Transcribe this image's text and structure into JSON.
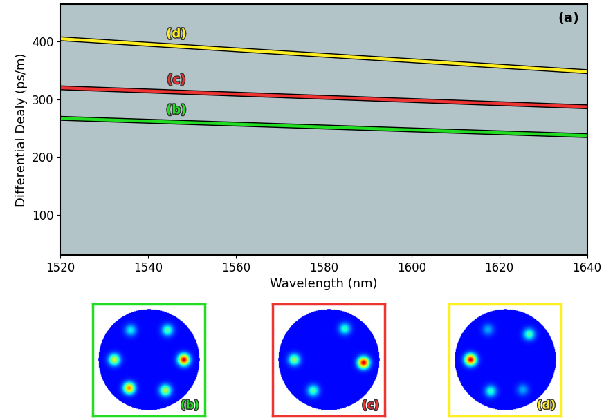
{
  "chart_data": {
    "type": "line",
    "panel_label": "(a)",
    "x_label": "Wavelength (nm)",
    "y_label": "Differential Dealy (ps/m)",
    "xlim": [
      1520,
      1640
    ],
    "xticks": [
      1520,
      1540,
      1560,
      1580,
      1600,
      1620,
      1640
    ],
    "ylim": [
      30,
      465
    ],
    "yticks": [
      100,
      200,
      300,
      400
    ],
    "grid": false,
    "series": [
      {
        "name": "(d)",
        "color": "#ffee22",
        "x": [
          1520,
          1640
        ],
        "values": [
          405,
          348
        ]
      },
      {
        "name": "(c)",
        "color": "#ee3333",
        "x": [
          1520,
          1640
        ],
        "values": [
          320,
          287
        ]
      },
      {
        "name": "(b)",
        "color": "#22dd22",
        "x": [
          1520,
          1640
        ],
        "values": [
          267,
          237
        ]
      }
    ]
  },
  "mode_images": [
    {
      "label": "(b)",
      "color": "#22dd22",
      "spots": [
        {
          "angle": 0,
          "intensity": 1.0
        },
        {
          "angle": 58,
          "intensity": 0.4
        },
        {
          "angle": 122,
          "intensity": 0.3
        },
        {
          "angle": 180,
          "intensity": 0.6
        },
        {
          "angle": 235,
          "intensity": 0.8
        },
        {
          "angle": 298,
          "intensity": 0.55
        }
      ]
    },
    {
      "label": "(c)",
      "color": "#ee3333",
      "spots": [
        {
          "angle": 355,
          "intensity": 1.0
        },
        {
          "angle": 63,
          "intensity": 0.35
        },
        {
          "angle": 180,
          "intensity": 0.5
        },
        {
          "angle": 243,
          "intensity": 0.4
        }
      ]
    },
    {
      "label": "(d)",
      "color": "#ffee22",
      "spots": [
        {
          "angle": 180,
          "intensity": 1.0
        },
        {
          "angle": 47,
          "intensity": 0.4
        },
        {
          "angle": 245,
          "intensity": 0.35
        },
        {
          "angle": 300,
          "intensity": 0.2
        },
        {
          "angle": 120,
          "intensity": 0.2
        }
      ]
    }
  ]
}
